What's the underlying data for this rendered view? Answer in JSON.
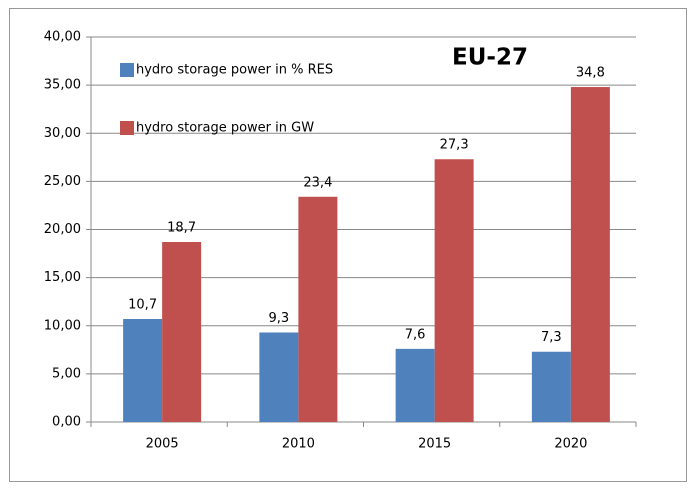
{
  "chart_data": {
    "type": "bar",
    "annotation": "EU-27",
    "categories": [
      "2005",
      "2010",
      "2015",
      "2020"
    ],
    "series": [
      {
        "name": "hydro storage power in % RES",
        "color": "#4f81bd",
        "values": [
          10.7,
          9.3,
          7.6,
          7.3
        ],
        "value_labels": [
          "10,7",
          "9,3",
          "7,6",
          "7,3"
        ]
      },
      {
        "name": "hydro storage power in GW",
        "color": "#c0504d",
        "values": [
          18.7,
          23.4,
          27.3,
          34.8
        ],
        "value_labels": [
          "18,7",
          "23,4",
          "27,3",
          "34,8"
        ]
      }
    ],
    "ylim": [
      0,
      40
    ],
    "yticks": [
      {
        "value": 0,
        "label": "0,00"
      },
      {
        "value": 5,
        "label": "5,00"
      },
      {
        "value": 10,
        "label": "10,00"
      },
      {
        "value": 15,
        "label": "15,00"
      },
      {
        "value": 20,
        "label": "20,00"
      },
      {
        "value": 25,
        "label": "25,00"
      },
      {
        "value": 30,
        "label": "30,00"
      },
      {
        "value": 35,
        "label": "35,00"
      },
      {
        "value": 40,
        "label": "40,00"
      }
    ],
    "grid": true,
    "legend": "top-left"
  }
}
